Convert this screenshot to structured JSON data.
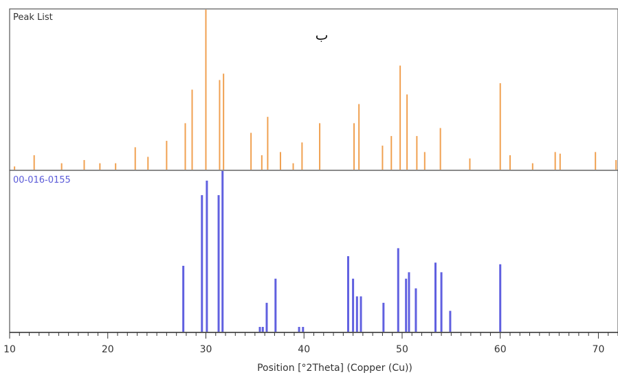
{
  "annotation": "ب",
  "chart_data": [
    {
      "type": "bar",
      "title": "Peak List",
      "x_unit": "°2Theta",
      "xlim": [
        10,
        72
      ],
      "color": "#f0a050",
      "peaks": [
        {
          "x": 10.5,
          "y": 2
        },
        {
          "x": 12.5,
          "y": 9
        },
        {
          "x": 15.3,
          "y": 4
        },
        {
          "x": 17.6,
          "y": 6
        },
        {
          "x": 19.2,
          "y": 4
        },
        {
          "x": 20.8,
          "y": 4
        },
        {
          "x": 22.8,
          "y": 14
        },
        {
          "x": 24.1,
          "y": 8
        },
        {
          "x": 26.0,
          "y": 18
        },
        {
          "x": 27.9,
          "y": 29
        },
        {
          "x": 28.6,
          "y": 50
        },
        {
          "x": 30.0,
          "y": 100
        },
        {
          "x": 31.4,
          "y": 56
        },
        {
          "x": 31.8,
          "y": 60
        },
        {
          "x": 34.6,
          "y": 23
        },
        {
          "x": 35.7,
          "y": 9
        },
        {
          "x": 36.3,
          "y": 33
        },
        {
          "x": 37.6,
          "y": 11
        },
        {
          "x": 38.9,
          "y": 4
        },
        {
          "x": 39.8,
          "y": 17
        },
        {
          "x": 41.6,
          "y": 29
        },
        {
          "x": 45.1,
          "y": 29
        },
        {
          "x": 45.6,
          "y": 41
        },
        {
          "x": 48.0,
          "y": 15
        },
        {
          "x": 48.9,
          "y": 21
        },
        {
          "x": 49.8,
          "y": 65
        },
        {
          "x": 50.5,
          "y": 47
        },
        {
          "x": 51.5,
          "y": 21
        },
        {
          "x": 52.3,
          "y": 11
        },
        {
          "x": 53.9,
          "y": 26
        },
        {
          "x": 56.9,
          "y": 7
        },
        {
          "x": 60.0,
          "y": 54
        },
        {
          "x": 61.0,
          "y": 9
        },
        {
          "x": 63.3,
          "y": 4
        },
        {
          "x": 65.6,
          "y": 11
        },
        {
          "x": 66.1,
          "y": 10
        },
        {
          "x": 69.7,
          "y": 11
        },
        {
          "x": 71.8,
          "y": 6
        }
      ]
    },
    {
      "type": "bar",
      "title": "00-016-0155",
      "x_unit": "°2Theta",
      "xlim": [
        10,
        72
      ],
      "color": "#6060e0",
      "peaks": [
        {
          "x": 27.7,
          "y": 41
        },
        {
          "x": 29.6,
          "y": 85
        },
        {
          "x": 30.1,
          "y": 94
        },
        {
          "x": 31.3,
          "y": 85
        },
        {
          "x": 31.7,
          "y": 100
        },
        {
          "x": 35.5,
          "y": 3
        },
        {
          "x": 35.8,
          "y": 3
        },
        {
          "x": 36.2,
          "y": 18
        },
        {
          "x": 37.1,
          "y": 33
        },
        {
          "x": 39.5,
          "y": 3
        },
        {
          "x": 39.9,
          "y": 3
        },
        {
          "x": 44.5,
          "y": 47
        },
        {
          "x": 45.0,
          "y": 33
        },
        {
          "x": 45.4,
          "y": 22
        },
        {
          "x": 45.8,
          "y": 22
        },
        {
          "x": 48.1,
          "y": 18
        },
        {
          "x": 49.6,
          "y": 52
        },
        {
          "x": 50.4,
          "y": 33
        },
        {
          "x": 50.7,
          "y": 37
        },
        {
          "x": 51.4,
          "y": 27
        },
        {
          "x": 53.4,
          "y": 43
        },
        {
          "x": 54.0,
          "y": 37
        },
        {
          "x": 54.9,
          "y": 13
        },
        {
          "x": 60.0,
          "y": 42
        }
      ]
    }
  ],
  "x_axis": {
    "label": "Position [°2Theta] (Copper (Cu))",
    "ticks": [
      10,
      20,
      30,
      40,
      50,
      60,
      70
    ]
  }
}
